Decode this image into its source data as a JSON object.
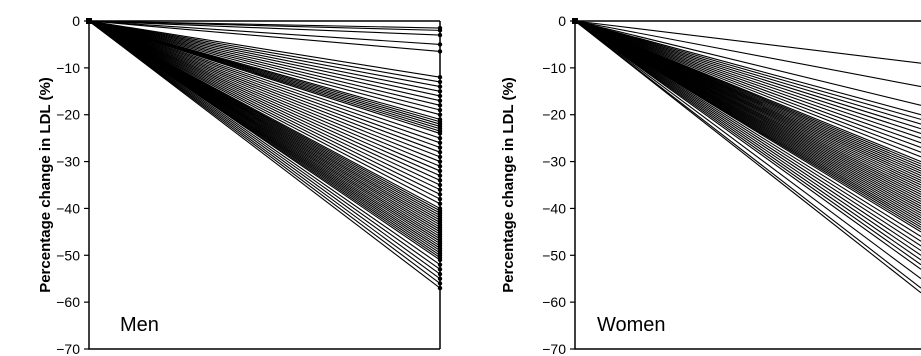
{
  "chart_data": [
    {
      "type": "line",
      "panel_label": "Men",
      "ylabel": "Percentage change in LDL (%)",
      "xlabel": "",
      "ylim": [
        -70,
        0
      ],
      "yticks": [
        0,
        -10,
        -20,
        -30,
        -40,
        -50,
        -60,
        -70
      ],
      "ytick_labels": [
        "0",
        "−10",
        "−20",
        "−30",
        "−40",
        "−50",
        "−60",
        "−70"
      ],
      "grid": false,
      "legend": "none",
      "line_color": "#000000",
      "x": [
        0,
        1
      ],
      "end_values": [
        -1.5,
        -2,
        -3,
        -5,
        -6.5,
        -12,
        -13,
        -14,
        -15,
        -16,
        -17,
        -18,
        -19,
        -20,
        -21,
        -21.5,
        -22,
        -22.5,
        -23,
        -23.5,
        -24,
        -25,
        -26,
        -27,
        -28,
        -29,
        -30,
        -31,
        -32,
        -33,
        -34,
        -35,
        -36,
        -37,
        -38,
        -39,
        -40,
        -40.5,
        -41,
        -41.5,
        -42,
        -42.5,
        -43,
        -43.5,
        -44,
        -44.5,
        -45,
        -45.5,
        -46,
        -46.5,
        -47,
        -47.5,
        -48,
        -48.5,
        -49,
        -49.5,
        -50,
        -50.5,
        -51,
        -52,
        -53,
        -54,
        -55,
        -56,
        -57
      ]
    },
    {
      "type": "line",
      "panel_label": "Women",
      "ylabel": "Percentage change in LDL (%)",
      "xlabel": "",
      "ylim": [
        -70,
        0
      ],
      "yticks": [
        0,
        -10,
        -20,
        -30,
        -40,
        -50,
        -60,
        -70
      ],
      "ytick_labels": [
        "0",
        "−10",
        "−20",
        "−30",
        "−40",
        "−50",
        "−60",
        "−70"
      ],
      "grid": false,
      "legend": "none",
      "line_color": "#000000",
      "x": [
        0,
        1
      ],
      "end_values": [
        -9,
        -14,
        -18,
        -20,
        -21,
        -22,
        -23,
        -24,
        -25,
        -26,
        -27,
        -28,
        -29,
        -30,
        -30.5,
        -31,
        -31.5,
        -32,
        -32.5,
        -33,
        -33.5,
        -34,
        -34.5,
        -35,
        -35.5,
        -36,
        -36.5,
        -37,
        -37.5,
        -38,
        -38.5,
        -39,
        -39.5,
        -40,
        -40.5,
        -41,
        -41.5,
        -42,
        -42.5,
        -43,
        -43.5,
        -44,
        -44.5,
        -45,
        -46,
        -47,
        -48,
        -49,
        -50,
        -51,
        -52,
        -53,
        -55,
        -57,
        -58
      ]
    }
  ]
}
